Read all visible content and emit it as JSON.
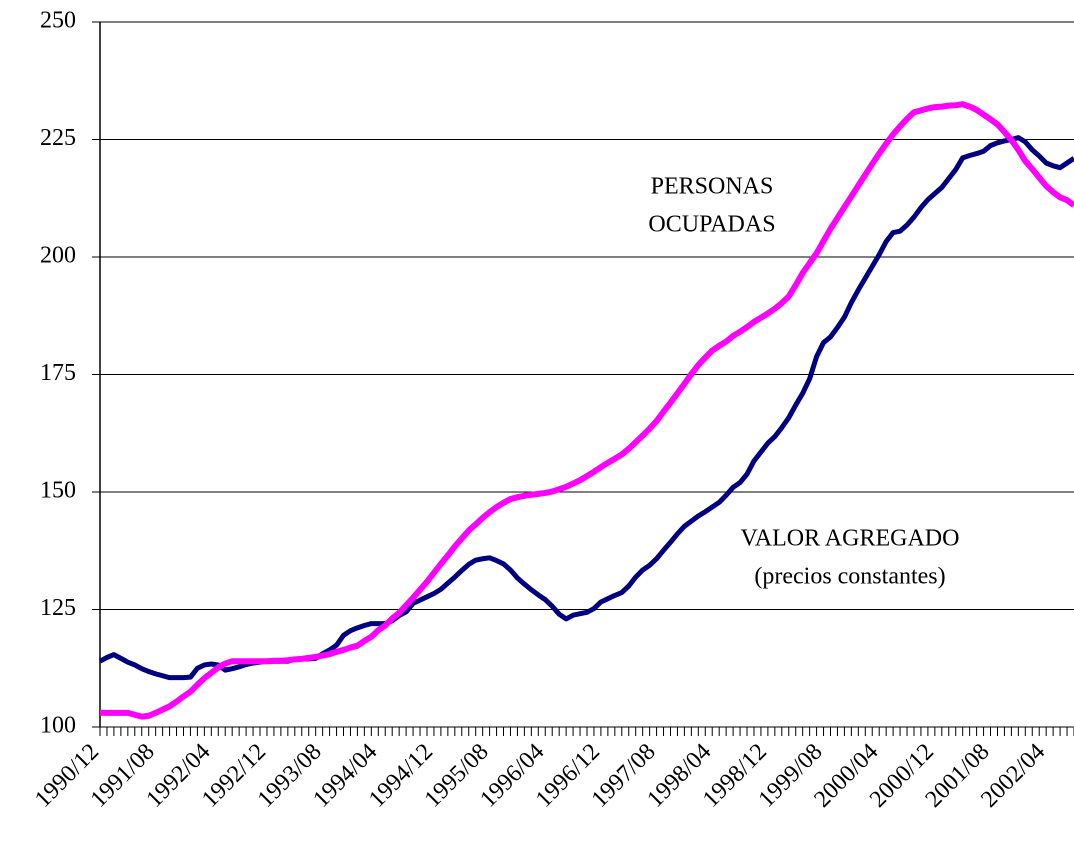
{
  "chart_data": {
    "type": "line",
    "categories": [
      "1990/12",
      null,
      null,
      null,
      null,
      null,
      null,
      null,
      "1991/08",
      null,
      null,
      null,
      null,
      null,
      null,
      null,
      "1992/04",
      null,
      null,
      null,
      null,
      null,
      null,
      null,
      "1992/12",
      null,
      null,
      null,
      null,
      null,
      null,
      null,
      "1993/08",
      null,
      null,
      null,
      null,
      null,
      null,
      null,
      "1994/04",
      null,
      null,
      null,
      null,
      null,
      null,
      null,
      "1994/12",
      null,
      null,
      null,
      null,
      null,
      null,
      null,
      "1995/08",
      null,
      null,
      null,
      null,
      null,
      null,
      null,
      "1996/04",
      null,
      null,
      null,
      null,
      null,
      null,
      null,
      "1996/12",
      null,
      null,
      null,
      null,
      null,
      null,
      null,
      "1997/08",
      null,
      null,
      null,
      null,
      null,
      null,
      null,
      "1998/04",
      null,
      null,
      null,
      null,
      null,
      null,
      null,
      "1998/12",
      null,
      null,
      null,
      null,
      null,
      null,
      null,
      "1999/08",
      null,
      null,
      null,
      null,
      null,
      null,
      null,
      "2000/04",
      null,
      null,
      null,
      null,
      null,
      null,
      null,
      "2000/12",
      null,
      null,
      null,
      null,
      null,
      null,
      null,
      "2001/08",
      null,
      null,
      null,
      null,
      null,
      null,
      null,
      "2002/04",
      null,
      null,
      null,
      null
    ],
    "series": [
      {
        "name": "VALOR AGREGADO",
        "color": "#000080",
        "values": [
          114,
          114.8,
          115.4,
          114.6,
          113.8,
          113.2,
          112.4,
          111.8,
          111.3,
          110.9,
          110.5,
          110.5,
          110.5,
          110.6,
          112.5,
          113.2,
          113.4,
          113.2,
          112.1,
          112.4,
          112.8,
          113.3,
          113.6,
          113.8,
          114,
          114,
          114,
          114,
          114.4,
          114.5,
          114.5,
          114.6,
          115.6,
          116.4,
          117.4,
          119.5,
          120.5,
          121.1,
          121.6,
          122,
          122,
          122,
          122.6,
          123.7,
          124.5,
          126.3,
          127,
          127.7,
          128.4,
          129.3,
          130.6,
          131.9,
          133.3,
          134.6,
          135.5,
          135.8,
          136,
          135.4,
          134.7,
          133.4,
          131.7,
          130.4,
          129.2,
          128.1,
          127.1,
          125.7,
          124,
          123,
          123.8,
          124.1,
          124.4,
          125.2,
          126.6,
          127.3,
          128,
          128.6,
          130,
          131.9,
          133.4,
          134.4,
          135.8,
          137.6,
          139.3,
          141.1,
          142.7,
          143.8,
          144.9,
          145.8,
          146.8,
          147.8,
          149.3,
          151,
          152,
          153.8,
          156.6,
          158.5,
          160.4,
          161.8,
          163.7,
          165.8,
          168.5,
          171,
          174.1,
          178.8,
          181.8,
          183,
          185,
          187.2,
          190.3,
          193,
          195.5,
          198,
          200.5,
          203.3,
          205.2,
          205.5,
          206.8,
          208.5,
          210.5,
          212.2,
          213.5,
          214.8,
          216.7,
          218.6,
          221.1,
          221.6,
          222,
          222.5,
          223.7,
          224.3,
          224.7,
          225,
          225.4,
          224.5,
          222.8,
          221.5,
          220,
          219.4,
          219,
          220,
          221
        ]
      },
      {
        "name": "PERSONAS OCUPADAS",
        "color": "#ff00ff",
        "values": [
          103,
          103,
          103,
          103,
          103,
          102.6,
          102.2,
          102.4,
          103,
          103.7,
          104.4,
          105.4,
          106.5,
          107.5,
          109,
          110.4,
          111.5,
          112.7,
          113.5,
          114,
          114,
          114,
          114,
          114,
          114,
          114.1,
          114.1,
          114.2,
          114.4,
          114.5,
          114.7,
          114.9,
          115.2,
          115.5,
          116,
          116.4,
          116.9,
          117.3,
          118.3,
          119.2,
          120.6,
          121.6,
          123.1,
          124.3,
          125.9,
          127.5,
          129.2,
          130.9,
          132.8,
          134.7,
          136.5,
          138.4,
          140.1,
          141.8,
          143.1,
          144.5,
          145.7,
          146.8,
          147.7,
          148.5,
          148.9,
          149.2,
          149.4,
          149.6,
          149.8,
          150.1,
          150.6,
          151.1,
          151.8,
          152.5,
          153.4,
          154.3,
          155.3,
          156.2,
          157.1,
          158,
          159.2,
          160.6,
          162,
          163.5,
          165.1,
          167.1,
          169,
          171,
          173,
          175.1,
          177,
          178.6,
          180.1,
          181.1,
          182,
          183.2,
          184.1,
          185.1,
          186.2,
          187.1,
          188,
          189,
          190.2,
          191.6,
          194,
          196.6,
          198.7,
          200.8,
          203.4,
          206,
          208.3,
          210.6,
          212.9,
          215.2,
          217.5,
          219.8,
          222,
          224.1,
          226.1,
          227.8,
          229.4,
          230.8,
          231.2,
          231.6,
          231.9,
          232,
          232.2,
          232.3,
          232.5,
          232,
          231.3,
          230.3,
          229.3,
          228.2,
          226.6,
          224.9,
          222.8,
          220.4,
          218.7,
          216.9,
          215.1,
          213.8,
          212.7,
          212.1,
          211
        ]
      }
    ],
    "annotations": [
      {
        "lines": [
          "PERSONAS",
          "OCUPADAS"
        ]
      },
      {
        "lines": [
          "VALOR AGREGADO",
          "(precios constantes)"
        ]
      }
    ],
    "ylim": [
      100,
      250
    ],
    "yticks": [
      100,
      125,
      150,
      175,
      200,
      225,
      250
    ],
    "grid": true
  }
}
